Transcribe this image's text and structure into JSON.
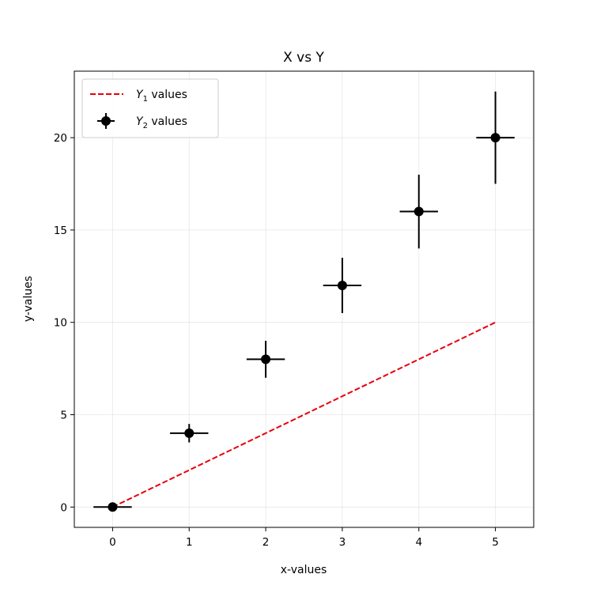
{
  "chart_data": {
    "type": "line",
    "title": "X vs Y",
    "xlabel": "x-values",
    "ylabel": "y-values",
    "xlim": [
      -0.5,
      5.5
    ],
    "ylim": [
      -1.1,
      23.6
    ],
    "xticks": [
      0,
      1,
      2,
      3,
      4,
      5
    ],
    "yticks": [
      0,
      5,
      10,
      15,
      20
    ],
    "grid": true,
    "legend_position": "top-left",
    "x": [
      0,
      1,
      2,
      3,
      4,
      5
    ],
    "series": [
      {
        "name_base": "Y",
        "name_sub": "1",
        "name_rest": " values",
        "kind": "line",
        "style": "dashed",
        "color": "#e8000b",
        "values": [
          0,
          2,
          4,
          6,
          8,
          10
        ]
      },
      {
        "name_base": "Y",
        "name_sub": "2",
        "name_rest": " values",
        "kind": "errorbar",
        "color": "#000000",
        "values": [
          0,
          4,
          8,
          12,
          16,
          20
        ],
        "xerr": [
          0.25,
          0.25,
          0.25,
          0.25,
          0.25,
          0.25
        ],
        "yerr": [
          0,
          0.5,
          1.0,
          1.5,
          2.0,
          2.5
        ]
      }
    ]
  }
}
